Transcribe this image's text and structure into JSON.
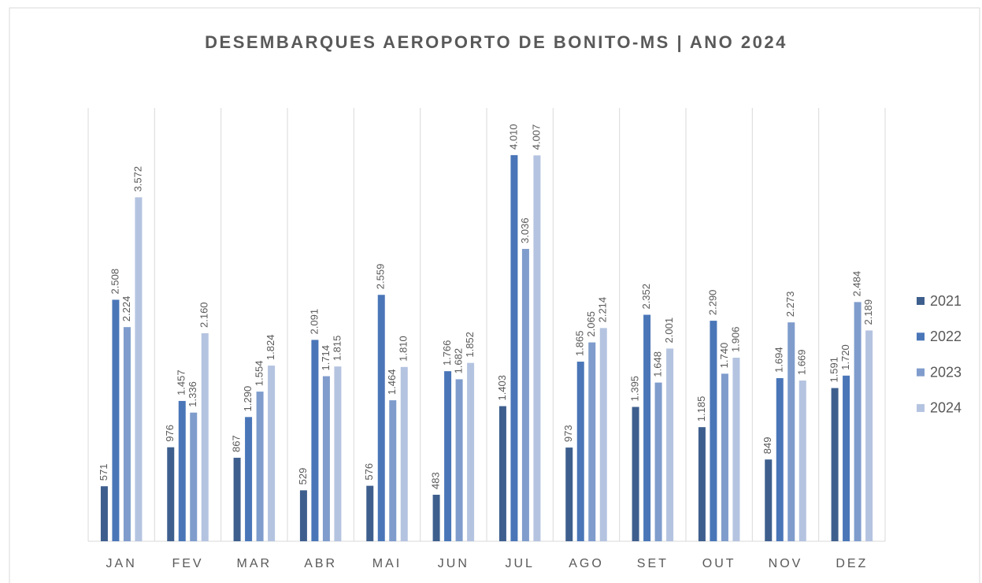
{
  "chart_data": {
    "type": "bar",
    "title": "DESEMBARQUES AEROPORTO DE BONITO-MS | ANO 2024",
    "categories": [
      "JAN",
      "FEV",
      "MAR",
      "ABR",
      "MAI",
      "JUN",
      "JUL",
      "AGO",
      "SET",
      "OUT",
      "NOV",
      "DEZ"
    ],
    "series": [
      {
        "name": "2021",
        "color": "#3e5f8e",
        "values": [
          571,
          976,
          867,
          529,
          576,
          483,
          1403,
          973,
          1395,
          1185,
          849,
          1591
        ],
        "value_labels": [
          "571",
          "976",
          "867",
          "529",
          "576",
          "483",
          "1.403",
          "973",
          "1.395",
          "1.185",
          "849",
          "1.591"
        ]
      },
      {
        "name": "2022",
        "color": "#4a76b8",
        "values": [
          2508,
          1457,
          1290,
          2091,
          2559,
          1766,
          4010,
          1865,
          2352,
          2290,
          1694,
          1720
        ],
        "value_labels": [
          "2.508",
          "1.457",
          "1.290",
          "2.091",
          "2.559",
          "1.766",
          "4.010",
          "1.865",
          "2.352",
          "2.290",
          "1.694",
          "1.720"
        ]
      },
      {
        "name": "2023",
        "color": "#7f9ccc",
        "values": [
          2224,
          1336,
          1554,
          1714,
          1464,
          1682,
          3036,
          2065,
          1648,
          1740,
          2273,
          2484
        ],
        "value_labels": [
          "2.224",
          "1.336",
          "1.554",
          "1.714",
          "1.464",
          "1.682",
          "3.036",
          "2.065",
          "1.648",
          "1.740",
          "2.273",
          "2.484"
        ]
      },
      {
        "name": "2024",
        "color": "#b4c3e0",
        "values": [
          3572,
          2160,
          1824,
          1815,
          1810,
          1852,
          4007,
          2214,
          2001,
          1906,
          1669,
          2189
        ],
        "value_labels": [
          "3.572",
          "2.160",
          "1.824",
          "1.815",
          "1.810",
          "1.852",
          "4.007",
          "2.214",
          "2.001",
          "1.906",
          "1.669",
          "2.189"
        ]
      }
    ],
    "ylim": [
      0,
      4500
    ],
    "legend": "right"
  }
}
